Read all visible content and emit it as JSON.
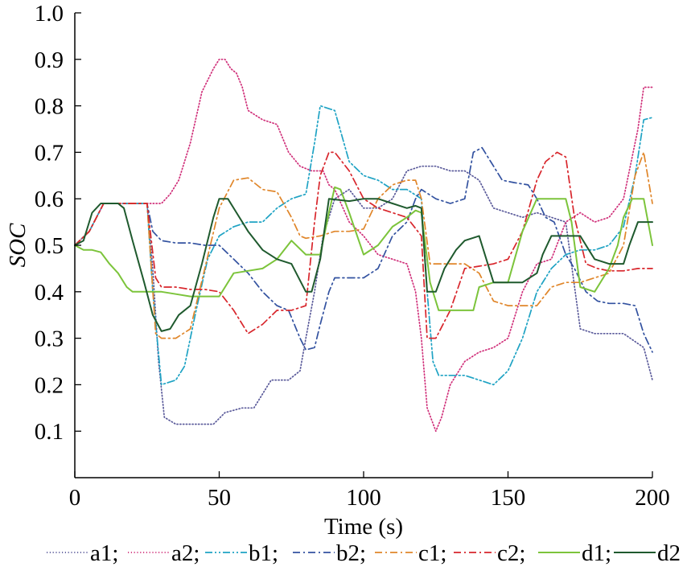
{
  "chart_data": {
    "type": "line",
    "title": "",
    "xlabel": "Time (s)",
    "ylabel": "SOC",
    "xlim": [
      0,
      200
    ],
    "ylim": [
      0,
      1.0
    ],
    "xticks": [
      0,
      50,
      100,
      150,
      200
    ],
    "xtick_labels": [
      "0",
      "50",
      "100",
      "150",
      "200"
    ],
    "yticks": [
      0.1,
      0.2,
      0.3,
      0.4,
      0.5,
      0.6,
      0.7,
      0.8,
      0.9,
      1.0
    ],
    "ytick_labels": [
      "0.1",
      "0.2",
      "0.3",
      "0.4",
      "0.5",
      "0.6",
      "0.7",
      "0.8",
      "0.9",
      "1.0"
    ],
    "grid": false,
    "legend_position": "bottom",
    "series": [
      {
        "name": "a1;",
        "color": "#5a5a9a",
        "dash": "dotted",
        "x": [
          0,
          5,
          10,
          15,
          20,
          25,
          27,
          29,
          31,
          35,
          42,
          48,
          52,
          58,
          62,
          68,
          74,
          78,
          80,
          83,
          86,
          90,
          95,
          100,
          105,
          110,
          115,
          120,
          125,
          130,
          135,
          140,
          145,
          150,
          155,
          160,
          165,
          170,
          175,
          180,
          190,
          197,
          200
        ],
        "values": [
          0.5,
          0.53,
          0.59,
          0.59,
          0.59,
          0.59,
          0.45,
          0.25,
          0.13,
          0.115,
          0.115,
          0.115,
          0.14,
          0.15,
          0.15,
          0.21,
          0.21,
          0.23,
          0.3,
          0.4,
          0.52,
          0.6,
          0.62,
          0.58,
          0.58,
          0.6,
          0.66,
          0.67,
          0.67,
          0.66,
          0.66,
          0.64,
          0.58,
          0.57,
          0.56,
          0.57,
          0.56,
          0.55,
          0.32,
          0.31,
          0.31,
          0.28,
          0.21
        ]
      },
      {
        "name": "a2;",
        "color": "#d0307a",
        "dash": "dotted",
        "x": [
          0,
          5,
          10,
          15,
          20,
          25,
          30,
          33,
          36,
          40,
          44,
          48,
          50,
          52,
          54,
          56,
          58,
          60,
          65,
          70,
          74,
          78,
          82,
          86,
          88,
          90,
          95,
          100,
          105,
          110,
          115,
          118,
          120,
          122,
          125,
          127,
          130,
          135,
          140,
          145,
          150,
          155,
          160,
          165,
          170,
          175,
          180,
          185,
          190,
          195,
          197,
          200
        ],
        "values": [
          0.5,
          0.53,
          0.59,
          0.59,
          0.59,
          0.59,
          0.59,
          0.61,
          0.64,
          0.72,
          0.83,
          0.88,
          0.9,
          0.9,
          0.88,
          0.87,
          0.84,
          0.79,
          0.77,
          0.76,
          0.7,
          0.67,
          0.66,
          0.66,
          0.63,
          0.62,
          0.55,
          0.52,
          0.48,
          0.47,
          0.46,
          0.4,
          0.3,
          0.15,
          0.1,
          0.13,
          0.2,
          0.25,
          0.27,
          0.28,
          0.3,
          0.4,
          0.46,
          0.47,
          0.55,
          0.57,
          0.55,
          0.56,
          0.6,
          0.75,
          0.84,
          0.84
        ]
      },
      {
        "name": "b1;",
        "color": "#1fa3c4",
        "dash": "dashdotdot",
        "x": [
          0,
          5,
          10,
          15,
          20,
          25,
          27,
          30,
          35,
          38,
          42,
          46,
          50,
          55,
          60,
          65,
          70,
          75,
          80,
          83,
          85,
          90,
          95,
          100,
          105,
          110,
          115,
          120,
          122,
          124,
          126,
          130,
          135,
          140,
          145,
          150,
          155,
          160,
          165,
          170,
          175,
          180,
          185,
          190,
          194,
          197,
          200
        ],
        "values": [
          0.5,
          0.53,
          0.59,
          0.59,
          0.59,
          0.59,
          0.4,
          0.2,
          0.21,
          0.24,
          0.36,
          0.47,
          0.52,
          0.54,
          0.55,
          0.55,
          0.58,
          0.6,
          0.61,
          0.72,
          0.8,
          0.79,
          0.68,
          0.65,
          0.64,
          0.62,
          0.62,
          0.6,
          0.4,
          0.25,
          0.22,
          0.22,
          0.22,
          0.21,
          0.2,
          0.23,
          0.3,
          0.4,
          0.45,
          0.48,
          0.49,
          0.49,
          0.5,
          0.54,
          0.65,
          0.77,
          0.775
        ]
      },
      {
        "name": "b2;",
        "color": "#3352a0",
        "dash": "dashdot",
        "x": [
          0,
          5,
          10,
          15,
          20,
          25,
          27,
          30,
          35,
          40,
          45,
          50,
          55,
          60,
          65,
          70,
          74,
          78,
          80,
          83,
          85,
          88,
          90,
          95,
          100,
          105,
          110,
          115,
          118,
          120,
          125,
          130,
          135,
          138,
          141,
          144,
          148,
          152,
          157,
          160,
          163,
          166,
          170,
          173,
          177,
          181,
          185,
          190,
          194,
          197,
          200
        ],
        "values": [
          0.5,
          0.53,
          0.59,
          0.59,
          0.59,
          0.59,
          0.53,
          0.51,
          0.505,
          0.505,
          0.5,
          0.5,
          0.47,
          0.44,
          0.4,
          0.37,
          0.36,
          0.3,
          0.275,
          0.28,
          0.33,
          0.4,
          0.43,
          0.43,
          0.43,
          0.45,
          0.52,
          0.55,
          0.6,
          0.62,
          0.6,
          0.59,
          0.6,
          0.7,
          0.71,
          0.68,
          0.64,
          0.635,
          0.63,
          0.6,
          0.56,
          0.55,
          0.48,
          0.45,
          0.4,
          0.38,
          0.375,
          0.375,
          0.37,
          0.31,
          0.27
        ]
      },
      {
        "name": "c1;",
        "color": "#e0862a",
        "dash": "dashdot",
        "x": [
          0,
          5,
          10,
          15,
          20,
          25,
          28,
          30,
          35,
          40,
          45,
          50,
          55,
          60,
          65,
          70,
          75,
          78,
          80,
          85,
          90,
          95,
          100,
          105,
          110,
          115,
          118,
          120,
          123,
          126,
          130,
          135,
          140,
          145,
          150,
          155,
          160,
          165,
          170,
          175,
          180,
          185,
          190,
          194,
          197,
          200
        ],
        "values": [
          0.5,
          0.53,
          0.59,
          0.59,
          0.59,
          0.59,
          0.31,
          0.3,
          0.3,
          0.32,
          0.45,
          0.58,
          0.64,
          0.645,
          0.62,
          0.615,
          0.56,
          0.52,
          0.515,
          0.52,
          0.53,
          0.53,
          0.535,
          0.6,
          0.63,
          0.64,
          0.64,
          0.6,
          0.46,
          0.46,
          0.46,
          0.46,
          0.44,
          0.38,
          0.37,
          0.37,
          0.37,
          0.41,
          0.42,
          0.42,
          0.43,
          0.44,
          0.5,
          0.65,
          0.7,
          0.59
        ]
      },
      {
        "name": "c2;",
        "color": "#d8262c",
        "dash": "dashdot",
        "x": [
          0,
          5,
          10,
          15,
          20,
          25,
          28,
          30,
          35,
          40,
          45,
          50,
          55,
          60,
          65,
          70,
          75,
          80,
          83,
          85,
          88,
          90,
          95,
          100,
          105,
          110,
          115,
          120,
          122,
          125,
          130,
          135,
          140,
          145,
          150,
          155,
          160,
          163,
          167,
          170,
          173,
          177,
          181,
          185,
          190,
          195,
          200
        ],
        "values": [
          0.5,
          0.53,
          0.59,
          0.59,
          0.59,
          0.59,
          0.43,
          0.41,
          0.41,
          0.405,
          0.405,
          0.4,
          0.36,
          0.31,
          0.33,
          0.36,
          0.36,
          0.37,
          0.55,
          0.65,
          0.7,
          0.7,
          0.66,
          0.6,
          0.58,
          0.57,
          0.56,
          0.52,
          0.3,
          0.3,
          0.36,
          0.45,
          0.455,
          0.46,
          0.47,
          0.53,
          0.64,
          0.68,
          0.7,
          0.69,
          0.56,
          0.46,
          0.45,
          0.445,
          0.445,
          0.45,
          0.45
        ]
      },
      {
        "name": "d1;",
        "color": "#7cc43b",
        "dash": "solid",
        "x": [
          0,
          3,
          6,
          9,
          12,
          15,
          18,
          20,
          25,
          30,
          35,
          40,
          45,
          50,
          55,
          60,
          65,
          70,
          75,
          80,
          85,
          88,
          90,
          92,
          95,
          100,
          105,
          110,
          115,
          118,
          120,
          123,
          126,
          130,
          135,
          138,
          140,
          145,
          150,
          155,
          160,
          165,
          170,
          172,
          175,
          180,
          185,
          188,
          190,
          193,
          197,
          200
        ],
        "values": [
          0.5,
          0.49,
          0.49,
          0.485,
          0.46,
          0.44,
          0.41,
          0.4,
          0.4,
          0.4,
          0.395,
          0.39,
          0.39,
          0.39,
          0.44,
          0.445,
          0.45,
          0.47,
          0.51,
          0.48,
          0.48,
          0.57,
          0.625,
          0.62,
          0.57,
          0.48,
          0.5,
          0.54,
          0.56,
          0.575,
          0.57,
          0.42,
          0.36,
          0.36,
          0.36,
          0.36,
          0.41,
          0.42,
          0.42,
          0.53,
          0.6,
          0.6,
          0.6,
          0.55,
          0.41,
          0.4,
          0.45,
          0.5,
          0.56,
          0.6,
          0.6,
          0.5
        ]
      },
      {
        "name": "d2",
        "color": "#1f5a2e",
        "dash": "solid",
        "x": [
          0,
          3,
          6,
          9,
          12,
          15,
          17,
          20,
          24,
          27,
          30,
          33,
          36,
          40,
          44,
          48,
          50,
          53,
          56,
          60,
          65,
          70,
          75,
          80,
          82,
          85,
          88,
          95,
          100,
          105,
          110,
          115,
          118,
          120,
          122,
          125,
          128,
          132,
          135,
          140,
          145,
          150,
          155,
          160,
          162,
          165,
          170,
          175,
          178,
          180,
          185,
          190,
          192,
          195,
          200
        ],
        "values": [
          0.5,
          0.51,
          0.57,
          0.59,
          0.59,
          0.59,
          0.58,
          0.51,
          0.42,
          0.35,
          0.315,
          0.32,
          0.35,
          0.37,
          0.46,
          0.56,
          0.6,
          0.6,
          0.57,
          0.53,
          0.49,
          0.47,
          0.46,
          0.4,
          0.4,
          0.47,
          0.6,
          0.595,
          0.6,
          0.6,
          0.59,
          0.58,
          0.585,
          0.58,
          0.4,
          0.4,
          0.45,
          0.49,
          0.51,
          0.52,
          0.42,
          0.42,
          0.42,
          0.44,
          0.48,
          0.52,
          0.52,
          0.52,
          0.49,
          0.47,
          0.46,
          0.46,
          0.5,
          0.55,
          0.55
        ]
      }
    ]
  }
}
